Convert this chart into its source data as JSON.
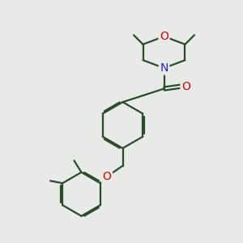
{
  "bg_color": "#e8eae8",
  "bond_color": "#2a4a2a",
  "bond_width": 1.6,
  "atom_colors": {
    "O": "#dd0000",
    "N": "#2222cc",
    "C": "#2a4a2a"
  },
  "font_size_atom": 10,
  "dbo": 0.055
}
